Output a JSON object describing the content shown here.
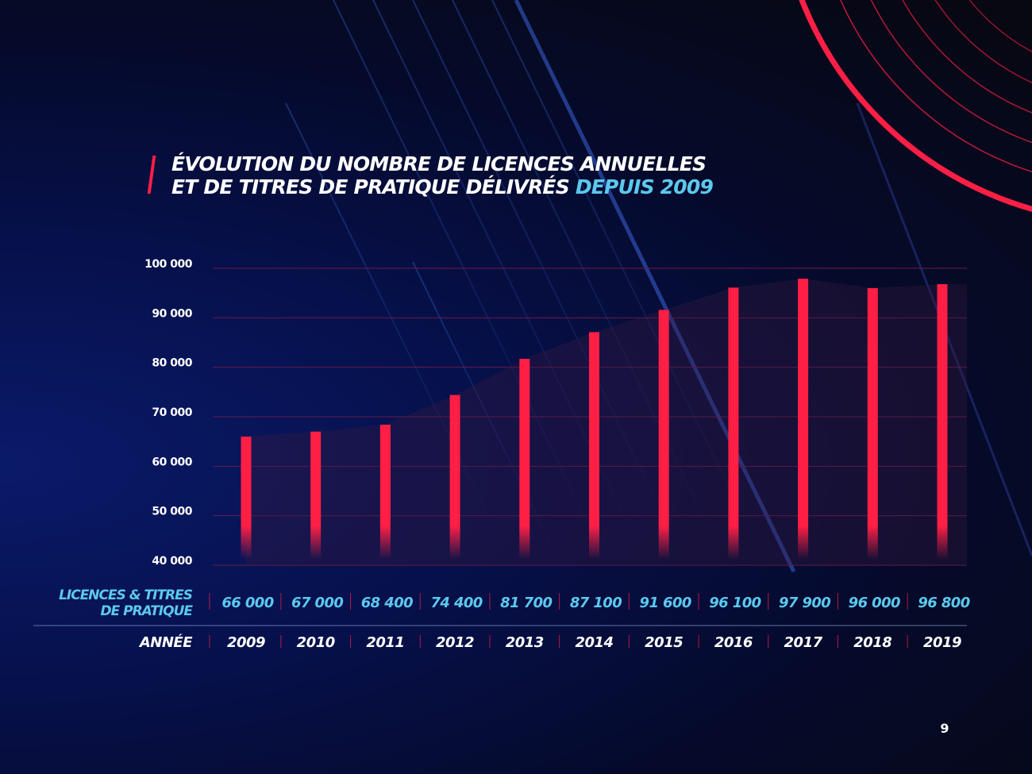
{
  "title": {
    "line1": "ÉVOLUTION DU NOMBRE DE LICENCES ANNUELLES",
    "line2_main": "ET DE TITRES DE PRATIQUE DÉLIVRÉS ",
    "line2_accent": "DEPUIS 2009"
  },
  "colors": {
    "bar": "#ff1f45",
    "accent": "#5cc8ee",
    "grid": "#6a1a4a",
    "text": "#ffffff"
  },
  "page_number": "9",
  "chart_data": {
    "type": "bar",
    "title": "ÉVOLUTION DU NOMBRE DE LICENCES ANNUELLES ET DE TITRES DE PRATIQUE DÉLIVRÉS DEPUIS 2009",
    "categories": [
      "2009",
      "2010",
      "2011",
      "2012",
      "2013",
      "2014",
      "2015",
      "2016",
      "2017",
      "2018",
      "2019"
    ],
    "series": [
      {
        "name": "LICENCES & TITRES DE PRATIQUE",
        "values": [
          66000,
          67000,
          68400,
          74400,
          81700,
          87100,
          91600,
          96100,
          97900,
          96000,
          96800
        ]
      }
    ],
    "value_labels": [
      "66 000",
      "67 000",
      "68 400",
      "74 400",
      "81 700",
      "87 100",
      "91 600",
      "96 100",
      "97 900",
      "96 000",
      "96 800"
    ],
    "series_label_lines": [
      "LICENCES & TITRES",
      "DE PRATIQUE"
    ],
    "category_axis_label": "ANNÉE",
    "ylim": [
      40000,
      100000
    ],
    "yticks": [
      100000,
      90000,
      80000,
      70000,
      60000,
      50000,
      40000
    ],
    "ytick_labels": [
      "100 000",
      "90 000",
      "80 000",
      "70 000",
      "60 000",
      "50 000",
      "40 000"
    ],
    "grid": true
  }
}
